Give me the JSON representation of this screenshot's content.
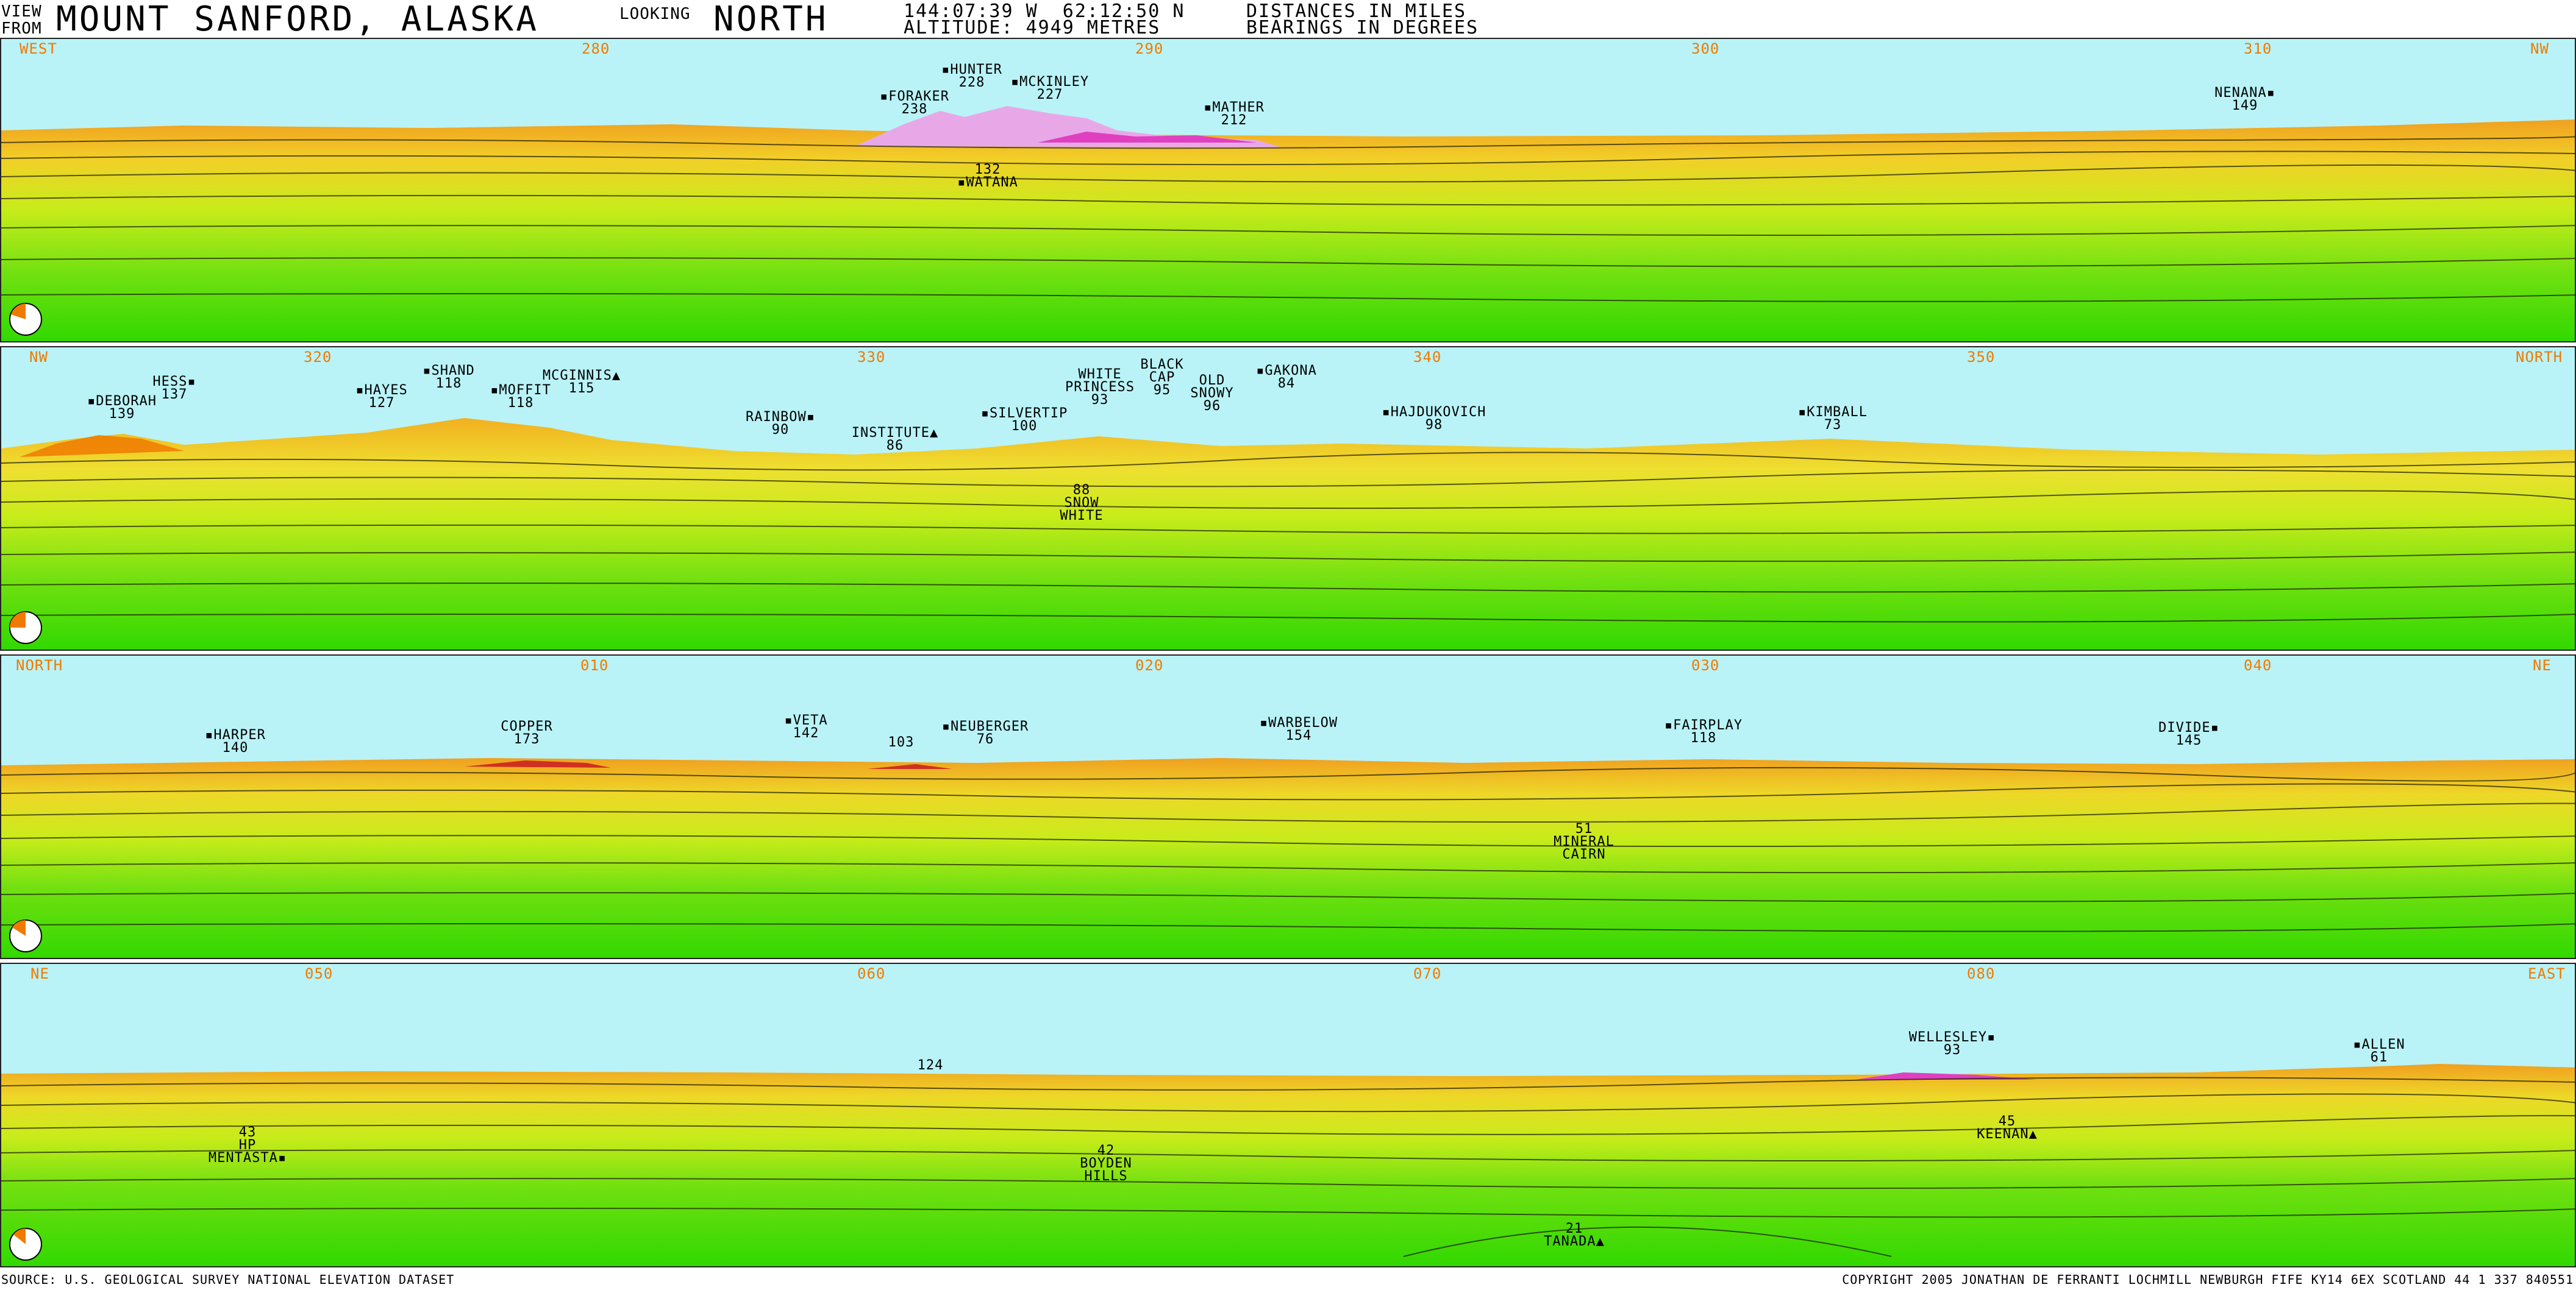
{
  "header": {
    "view_line1": "VIEW",
    "view_line2": "FROM",
    "place": "MOUNT SANFORD, ALASKA",
    "looking": "LOOKING",
    "direction": "NORTH",
    "coords": "144:07:39 W  62:12:50 N",
    "altitude": "ALTITUDE: 4949 METRES",
    "distances_note": "DISTANCES IN MILES",
    "bearings_note": "BEARINGS IN DEGREES"
  },
  "colors": {
    "sky": "#b9f3f7",
    "near": "#32d800",
    "mid": "#c8ec1a",
    "far": "#f2b020",
    "distant_peaks": "#e05ac8",
    "bearing_text": "#f07a00"
  },
  "panels": [
    {
      "bearings": [
        "WEST",
        "280",
        "290",
        "300",
        "310",
        "NW"
      ],
      "peaks": [
        {
          "lines": [
            "▪HUNTER",
            "228"
          ]
        },
        {
          "lines": [
            "▪FORAKER",
            "238"
          ]
        },
        {
          "lines": [
            "▪MCKINLEY",
            "227"
          ]
        },
        {
          "lines": [
            "▪MATHER",
            "212"
          ]
        },
        {
          "lines": [
            "132",
            "▪WATANA"
          ]
        },
        {
          "lines": [
            "NENANA▪",
            "149"
          ]
        }
      ]
    },
    {
      "bearings": [
        "NW",
        "320",
        "330",
        "340",
        "350",
        "NORTH"
      ],
      "peaks": [
        {
          "lines": [
            "HESS▪",
            "137"
          ]
        },
        {
          "lines": [
            "▪DEBORAH",
            "139"
          ]
        },
        {
          "lines": [
            "▪HAYES",
            "127"
          ]
        },
        {
          "lines": [
            "▪SHAND",
            "118"
          ]
        },
        {
          "lines": [
            "▪MOFFIT",
            "118"
          ]
        },
        {
          "lines": [
            "MCGINNIS▲",
            "115"
          ]
        },
        {
          "lines": [
            "RAINBOW▪",
            "90"
          ]
        },
        {
          "lines": [
            "INSTITUTE▲",
            "86"
          ]
        },
        {
          "lines": [
            "▪SILVERTIP",
            "100"
          ]
        },
        {
          "lines": [
            "WHITE",
            "PRINCESS",
            "93"
          ]
        },
        {
          "lines": [
            "BLACK",
            "CAP",
            "95"
          ]
        },
        {
          "lines": [
            "OLD",
            "SNOWY",
            "96"
          ]
        },
        {
          "lines": [
            "▪GAKONA",
            "84"
          ]
        },
        {
          "lines": [
            "▪HAJDUKOVICH",
            "98"
          ]
        },
        {
          "lines": [
            "▪KIMBALL",
            "73"
          ]
        },
        {
          "lines": [
            "88",
            "SNOW",
            "WHITE"
          ]
        }
      ]
    },
    {
      "bearings": [
        "NORTH",
        "010",
        "020",
        "030",
        "040",
        "NE"
      ],
      "peaks": [
        {
          "lines": [
            "▪HARPER",
            "140"
          ]
        },
        {
          "lines": [
            "COPPER",
            "173"
          ]
        },
        {
          "lines": [
            "▪VETA",
            "142"
          ]
        },
        {
          "lines": [
            "103"
          ]
        },
        {
          "lines": [
            "▪NEUBERGER",
            "76"
          ]
        },
        {
          "lines": [
            "▪WARBELOW",
            "154"
          ]
        },
        {
          "lines": [
            "▪FAIRPLAY",
            "118"
          ]
        },
        {
          "lines": [
            "DIVIDE▪",
            "145"
          ]
        },
        {
          "lines": [
            "51",
            "MINERAL",
            "CAIRN"
          ]
        }
      ]
    },
    {
      "bearings": [
        "NE",
        "050",
        "060",
        "070",
        "080",
        "EAST"
      ],
      "peaks": [
        {
          "lines": [
            "124"
          ]
        },
        {
          "lines": [
            "WELLESLEY▪",
            "93"
          ]
        },
        {
          "lines": [
            "▪ALLEN",
            "61"
          ]
        },
        {
          "lines": [
            "43",
            "HP",
            "MENTASTA▪"
          ]
        },
        {
          "lines": [
            "42",
            "BOYDEN",
            "HILLS"
          ]
        },
        {
          "lines": [
            "45",
            "KEENAN▲"
          ]
        },
        {
          "lines": [
            "21",
            "TANADA▲"
          ]
        }
      ]
    }
  ],
  "footer": {
    "source": "SOURCE: U.S. GEOLOGICAL SURVEY NATIONAL ELEVATION DATASET",
    "copyright": "COPYRIGHT 2005 JONATHAN DE FERRANTI  LOCHMILL  NEWBURGH  FIFE KY14 6EX  SCOTLAND 44 1 337 840551"
  }
}
